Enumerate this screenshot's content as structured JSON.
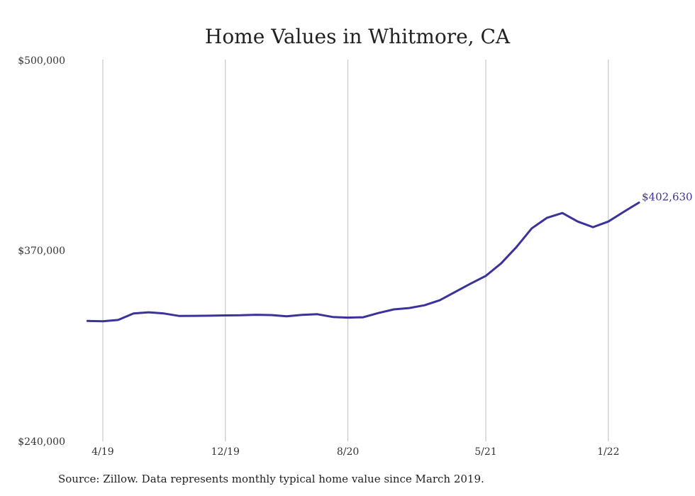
{
  "chart_data": {
    "type": "line",
    "title": "Home Values in Whitmore, CA",
    "xlabel": "",
    "ylabel": "",
    "ylim": [
      240000,
      500000
    ],
    "yticks": [
      {
        "value": 500000,
        "label": "$500,000"
      },
      {
        "value": 370000,
        "label": "$370,000"
      },
      {
        "value": 240000,
        "label": "$240,000"
      }
    ],
    "xticks": [
      {
        "date": "2019-04",
        "label": "4/19"
      },
      {
        "date": "2019-12",
        "label": "12/19"
      },
      {
        "date": "2020-08",
        "label": "8/20"
      },
      {
        "date": "2021-05",
        "label": "5/21"
      },
      {
        "date": "2022-01",
        "label": "1/22"
      }
    ],
    "grid": {
      "vertical": true,
      "horizontal": false
    },
    "color": "#3b329a",
    "series": [
      {
        "points": [
          [
            "2019-03",
            322000
          ],
          [
            "2019-04",
            321800
          ],
          [
            "2019-05",
            322700
          ],
          [
            "2019-06",
            327100
          ],
          [
            "2019-07",
            327900
          ],
          [
            "2019-08",
            327100
          ],
          [
            "2019-09",
            325400
          ],
          [
            "2019-10",
            325500
          ],
          [
            "2019-11",
            325600
          ],
          [
            "2019-12",
            325800
          ],
          [
            "2020-01",
            325900
          ],
          [
            "2020-02",
            326200
          ],
          [
            "2020-03",
            326000
          ],
          [
            "2020-04",
            325200
          ],
          [
            "2020-05",
            326100
          ],
          [
            "2020-06",
            326600
          ],
          [
            "2020-07",
            324700
          ],
          [
            "2020-08",
            324300
          ],
          [
            "2020-09",
            324500
          ],
          [
            "2020-10",
            327400
          ],
          [
            "2020-11",
            329900
          ],
          [
            "2020-12",
            330800
          ],
          [
            "2021-01",
            332700
          ],
          [
            "2021-02",
            336100
          ],
          [
            "2021-03",
            341800
          ],
          [
            "2021-04",
            347400
          ],
          [
            "2021-05",
            352700
          ],
          [
            "2021-06",
            361200
          ],
          [
            "2021-07",
            372300
          ],
          [
            "2021-08",
            385100
          ],
          [
            "2021-09",
            392300
          ],
          [
            "2021-10",
            395500
          ],
          [
            "2021-11",
            389700
          ],
          [
            "2021-12",
            385900
          ],
          [
            "2022-01",
            389700
          ],
          [
            "2022-02",
            396300
          ],
          [
            "2022-03",
            402630
          ]
        ]
      }
    ],
    "end_label": "$402,630",
    "source": "Source: Zillow. Data represents monthly typical home value since March 2019."
  }
}
